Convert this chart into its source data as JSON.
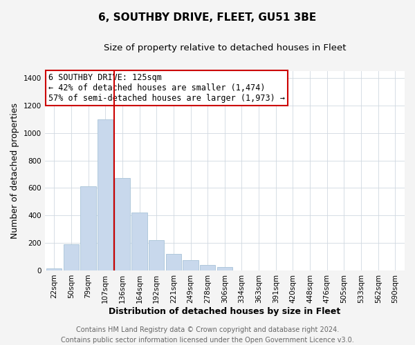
{
  "title": "6, SOUTHBY DRIVE, FLEET, GU51 3BE",
  "subtitle": "Size of property relative to detached houses in Fleet",
  "xlabel": "Distribution of detached houses by size in Fleet",
  "ylabel": "Number of detached properties",
  "bar_color": "#c8d8ec",
  "bar_edge_color": "#b0c8dc",
  "marker_line_color": "#cc0000",
  "categories": [
    "22sqm",
    "50sqm",
    "79sqm",
    "107sqm",
    "136sqm",
    "164sqm",
    "192sqm",
    "221sqm",
    "249sqm",
    "278sqm",
    "306sqm",
    "334sqm",
    "363sqm",
    "391sqm",
    "420sqm",
    "448sqm",
    "476sqm",
    "505sqm",
    "533sqm",
    "562sqm",
    "590sqm"
  ],
  "values": [
    15,
    190,
    610,
    1100,
    670,
    420,
    220,
    120,
    75,
    38,
    27,
    0,
    0,
    0,
    0,
    0,
    0,
    0,
    0,
    0,
    0
  ],
  "ylim": [
    0,
    1450
  ],
  "yticks": [
    0,
    200,
    400,
    600,
    800,
    1000,
    1200,
    1400
  ],
  "marker_bar_index": 3,
  "annotation_title": "6 SOUTHBY DRIVE: 125sqm",
  "annotation_line1": "← 42% of detached houses are smaller (1,474)",
  "annotation_line2": "57% of semi-detached houses are larger (1,973) →",
  "footer1": "Contains HM Land Registry data © Crown copyright and database right 2024.",
  "footer2": "Contains public sector information licensed under the Open Government Licence v3.0.",
  "bg_color": "#f4f4f4",
  "plot_bg_color": "#ffffff",
  "title_fontsize": 11,
  "subtitle_fontsize": 9.5,
  "axis_label_fontsize": 9,
  "tick_fontsize": 7.5,
  "annotation_fontsize": 8.5,
  "footer_fontsize": 7
}
